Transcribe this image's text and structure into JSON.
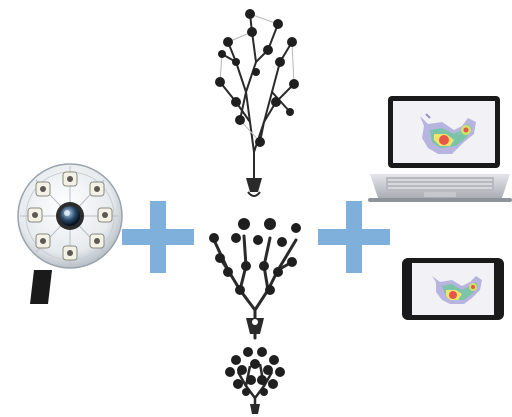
{
  "scene": {
    "camera_unit": {
      "icon": "camera-array-icon"
    },
    "plus_signs": [
      {
        "icon": "plus-icon",
        "color": "#7fb0dc"
      },
      {
        "icon": "plus-icon",
        "color": "#7fb0dc"
      }
    ],
    "marker_sets": [
      {
        "icon": "marker-tree-large-icon"
      },
      {
        "icon": "marker-tree-medium-icon"
      },
      {
        "icon": "marker-tree-small-icon"
      }
    ],
    "devices": [
      {
        "icon": "laptop-icon"
      },
      {
        "icon": "tablet-icon"
      }
    ],
    "colors": {
      "plus": "#7fb0dc",
      "marker_ball": "#1f1f1f",
      "stem": "#2a2a2a",
      "device_frame": "#1a1a1a",
      "laptop_base": "#c9cbd0",
      "camera_body": "#e8ecf0"
    }
  }
}
